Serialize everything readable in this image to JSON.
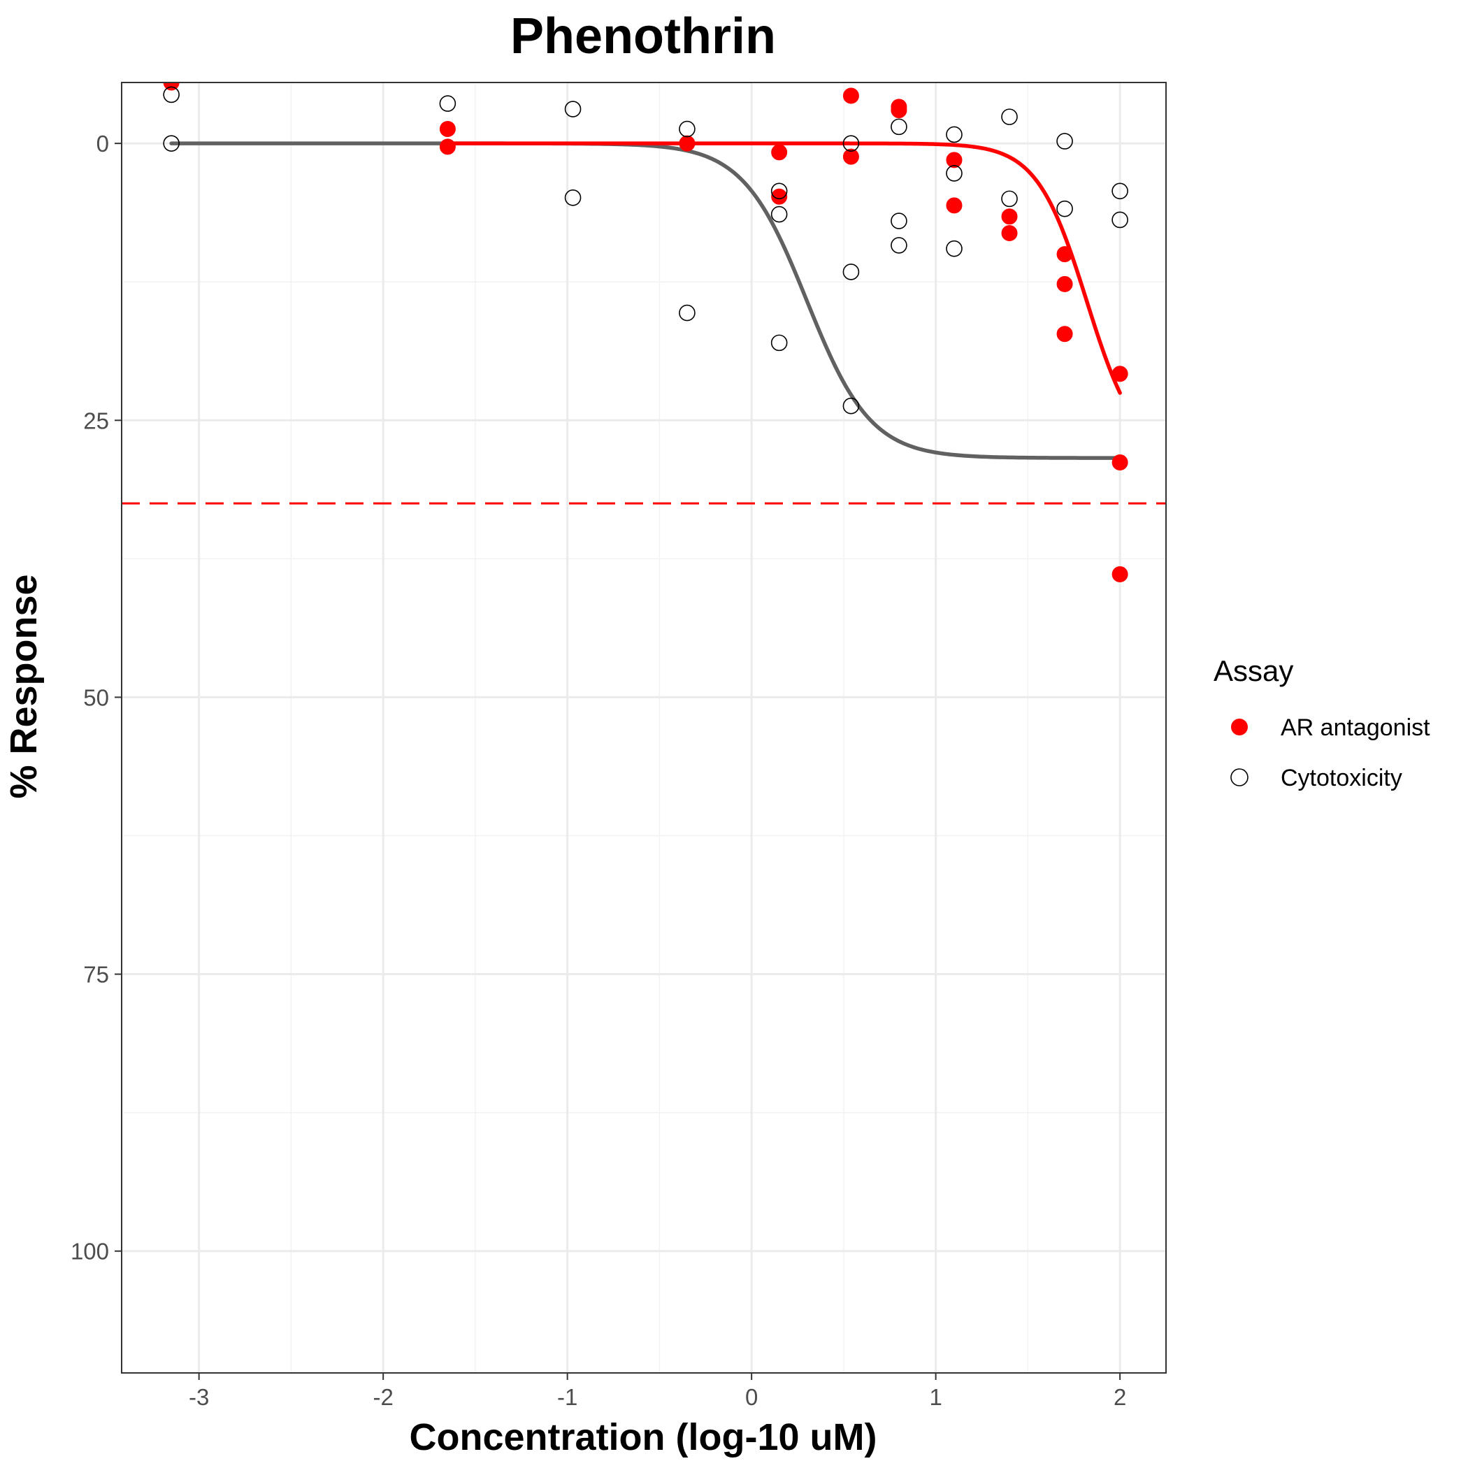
{
  "chart_data": {
    "type": "scatter",
    "title": "Phenothrin",
    "xlabel": "Concentration (log-10 uM)",
    "ylabel": "% Response",
    "xlim": [
      -3.42,
      2.25
    ],
    "ylim": [
      111,
      -5.5
    ],
    "y_reversed": true,
    "x_ticks": [
      -3,
      -2,
      -1,
      0,
      1,
      2
    ],
    "x_tick_labels": [
      "-3",
      "-2",
      "-1",
      "0",
      "1",
      "2"
    ],
    "y_ticks": [
      0,
      25,
      50,
      75,
      100
    ],
    "y_tick_labels": [
      "0",
      "25",
      "50",
      "75",
      "100"
    ],
    "grid": true,
    "legend": {
      "title": "Assay",
      "position": "right",
      "entries": [
        "AR antagonist",
        "Cytotoxicity"
      ]
    },
    "threshold_line": {
      "y": 32.5,
      "color": "#ff0000",
      "style": "dashed"
    },
    "series": [
      {
        "name": "AR antagonist",
        "marker": "filled-circle",
        "color": "#ff0000",
        "points": [
          {
            "x": -3.15,
            "y": -5.5
          },
          {
            "x": -1.65,
            "y": -1.3
          },
          {
            "x": -1.65,
            "y": 0.3
          },
          {
            "x": -0.35,
            "y": 0.0
          },
          {
            "x": 0.15,
            "y": 0.8
          },
          {
            "x": 0.15,
            "y": 4.8
          },
          {
            "x": 0.54,
            "y": -4.3
          },
          {
            "x": 0.54,
            "y": 1.2
          },
          {
            "x": 0.8,
            "y": -3.3
          },
          {
            "x": 0.8,
            "y": -3.0
          },
          {
            "x": 1.1,
            "y": 1.5
          },
          {
            "x": 1.1,
            "y": 5.6
          },
          {
            "x": 1.4,
            "y": 6.6
          },
          {
            "x": 1.4,
            "y": 8.1
          },
          {
            "x": 1.7,
            "y": 10.0
          },
          {
            "x": 1.7,
            "y": 12.7
          },
          {
            "x": 1.7,
            "y": 17.2
          },
          {
            "x": 2.0,
            "y": 20.8
          },
          {
            "x": 2.0,
            "y": 28.8
          },
          {
            "x": 2.0,
            "y": 38.9
          }
        ],
        "fit": {
          "top": 0,
          "bottom": 28.5,
          "ac50_log": 1.82,
          "hill": 3.2,
          "x_range": [
            -1.65,
            2.0
          ]
        }
      },
      {
        "name": "Cytotoxicity",
        "marker": "open-circle",
        "color": "#000000",
        "points": [
          {
            "x": -3.15,
            "y": -4.4
          },
          {
            "x": -3.15,
            "y": 0.0
          },
          {
            "x": -1.65,
            "y": -3.6
          },
          {
            "x": -0.97,
            "y": -3.1
          },
          {
            "x": -0.97,
            "y": 4.9
          },
          {
            "x": -0.35,
            "y": -1.3
          },
          {
            "x": -0.35,
            "y": 15.3
          },
          {
            "x": 0.15,
            "y": 4.3
          },
          {
            "x": 0.15,
            "y": 6.4
          },
          {
            "x": 0.15,
            "y": 18.0
          },
          {
            "x": 0.54,
            "y": 0.0
          },
          {
            "x": 0.54,
            "y": 11.6
          },
          {
            "x": 0.54,
            "y": 23.7
          },
          {
            "x": 0.8,
            "y": -1.5
          },
          {
            "x": 0.8,
            "y": 7.0
          },
          {
            "x": 0.8,
            "y": 9.2
          },
          {
            "x": 1.1,
            "y": -0.8
          },
          {
            "x": 1.1,
            "y": 2.7
          },
          {
            "x": 1.1,
            "y": 9.5
          },
          {
            "x": 1.4,
            "y": -2.4
          },
          {
            "x": 1.4,
            "y": 5.0
          },
          {
            "x": 1.7,
            "y": -0.2
          },
          {
            "x": 1.7,
            "y": 5.9
          },
          {
            "x": 2.0,
            "y": 4.3
          },
          {
            "x": 2.0,
            "y": 6.9
          }
        ],
        "fit": {
          "color": "#616161",
          "top": 0,
          "bottom": 28.4,
          "ac50_log": 0.3,
          "hill": 2.5,
          "x_range": [
            -3.15,
            2.0
          ]
        }
      }
    ]
  }
}
